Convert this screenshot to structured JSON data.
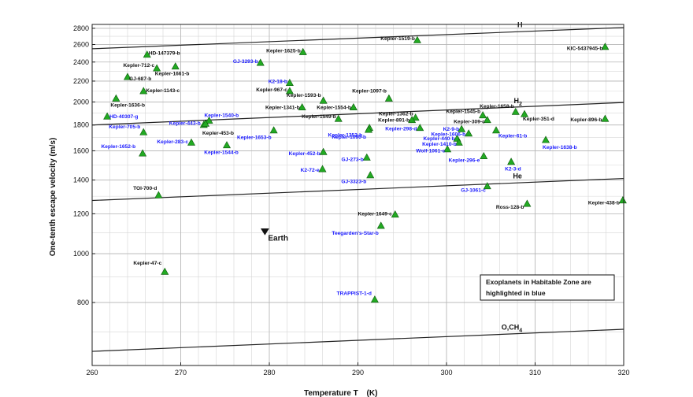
{
  "chart_data": {
    "type": "scatter",
    "xlabel": "Temperature T",
    "xlabel_unit": "(K)",
    "ylabel": "One-tenth escape velocity (m/s)",
    "xlim": [
      260,
      320
    ],
    "ylim": [
      600,
      2850
    ],
    "y_scale": "log",
    "x_ticks": [
      260,
      270,
      280,
      290,
      300,
      310,
      320
    ],
    "y_ticks": [
      800,
      1000,
      1200,
      1400,
      1600,
      1800,
      2000,
      2200,
      2400,
      2600,
      2800
    ],
    "grid": true,
    "marker": "triangle",
    "marker_color": "#22aa22",
    "colors": {
      "normal_label": "#111111",
      "habitable_label": "#1a1aff"
    },
    "note": [
      "Exoplanets in Habitable Zone are",
      "highlighted in blue"
    ],
    "reference_lines": [
      {
        "name": "H",
        "x": [
          260,
          320
        ],
        "y": [
          2550,
          2810
        ]
      },
      {
        "name": "H2",
        "x": [
          260,
          320
        ],
        "y": [
          1800,
          1995
        ]
      },
      {
        "name": "He",
        "x": [
          260,
          320
        ],
        "y": [
          1275,
          1410
        ]
      },
      {
        "name": "O,CH4",
        "x": [
          260,
          320
        ],
        "y": [
          640,
          708
        ]
      }
    ],
    "earth": {
      "name": "Earth",
      "x": 279.5,
      "y": 1105
    },
    "planets": [
      {
        "name": "Kepler-1519-b",
        "x": 296.7,
        "y": 2650,
        "hz": false
      },
      {
        "name": "KIC-5437945-b",
        "x": 317.9,
        "y": 2570,
        "hz": false
      },
      {
        "name": "HD-147379-b",
        "x": 266.2,
        "y": 2480,
        "hz": false
      },
      {
        "name": "Kepler-1625-b",
        "x": 283.8,
        "y": 2510,
        "hz": false
      },
      {
        "name": "GJ-3293-b",
        "x": 279.0,
        "y": 2390,
        "hz": true
      },
      {
        "name": "Kepler-712-c",
        "x": 267.3,
        "y": 2330,
        "hz": false
      },
      {
        "name": "Kepler-1661-b",
        "x": 269.4,
        "y": 2350,
        "hz": false
      },
      {
        "name": "GJ-687-b",
        "x": 264.0,
        "y": 2240,
        "hz": false
      },
      {
        "name": "K2-18-b",
        "x": 282.3,
        "y": 2180,
        "hz": true
      },
      {
        "name": "Kepler-1143-c",
        "x": 265.8,
        "y": 2100,
        "hz": false
      },
      {
        "name": "Kepler-967-c",
        "x": 282.3,
        "y": 2100,
        "hz": false
      },
      {
        "name": "Kepler-1593-b",
        "x": 286.1,
        "y": 2010,
        "hz": false
      },
      {
        "name": "Kepler-1097-b",
        "x": 293.5,
        "y": 2030,
        "hz": false
      },
      {
        "name": "Kepler-1636-b",
        "x": 262.7,
        "y": 2030,
        "hz": false
      },
      {
        "name": "Kepler-1341-b",
        "x": 283.7,
        "y": 1950,
        "hz": false
      },
      {
        "name": "Kepler-1554-b",
        "x": 289.5,
        "y": 1950,
        "hz": false
      },
      {
        "name": "Kepler-1658-b",
        "x": 307.8,
        "y": 1910,
        "hz": false
      },
      {
        "name": "HD-40307-g",
        "x": 261.7,
        "y": 1870,
        "hz": true
      },
      {
        "name": "Kepler-1540-b",
        "x": 273.2,
        "y": 1835,
        "hz": true
      },
      {
        "name": "Kepler-1549-b",
        "x": 287.8,
        "y": 1850,
        "hz": false
      },
      {
        "name": "Kepler-1362-b",
        "x": 296.5,
        "y": 1860,
        "hz": false
      },
      {
        "name": "Kepler-1545-b",
        "x": 304.1,
        "y": 1880,
        "hz": false
      },
      {
        "name": "Kepler-351-d",
        "x": 308.8,
        "y": 1890,
        "hz": false
      },
      {
        "name": "Kepler-896-b",
        "x": 317.9,
        "y": 1850,
        "hz": false
      },
      {
        "name": "Kepler-443-b",
        "x": 272.6,
        "y": 1800,
        "hz": true
      },
      {
        "name": "Kepler-891-b",
        "x": 296.1,
        "y": 1840,
        "hz": false
      },
      {
        "name": "Kepler-309-c",
        "x": 304.6,
        "y": 1840,
        "hz": false
      },
      {
        "name": "Kepler-705-b",
        "x": 265.8,
        "y": 1740,
        "hz": true
      },
      {
        "name": "Kepler-453-b",
        "x": 272.8,
        "y": 1810,
        "hz": false
      },
      {
        "name": "Kepler-1352-b",
        "x": 291.3,
        "y": 1775,
        "hz": true
      },
      {
        "name": "Kepler-298-d",
        "x": 297.0,
        "y": 1775,
        "hz": true
      },
      {
        "name": "K2-9-b",
        "x": 301.7,
        "y": 1765,
        "hz": true
      },
      {
        "name": "Kepler-1653-b",
        "x": 280.5,
        "y": 1755,
        "hz": true
      },
      {
        "name": "Kepler-1090-b",
        "x": 291.2,
        "y": 1760,
        "hz": true
      },
      {
        "name": "Kepler-1606-b",
        "x": 302.5,
        "y": 1730,
        "hz": true
      },
      {
        "name": "Kepler-61-b",
        "x": 305.6,
        "y": 1755,
        "hz": true
      },
      {
        "name": "Kepler-283-c",
        "x": 271.2,
        "y": 1660,
        "hz": true
      },
      {
        "name": "Kepler-440-b",
        "x": 301.2,
        "y": 1690,
        "hz": true
      },
      {
        "name": "Kepler-1410-b",
        "x": 301.4,
        "y": 1660,
        "hz": true
      },
      {
        "name": "Kepler-1638-b",
        "x": 311.2,
        "y": 1680,
        "hz": true
      },
      {
        "name": "Kepler-1544-b",
        "x": 275.2,
        "y": 1640,
        "hz": true
      },
      {
        "name": "Wolf-1061-c",
        "x": 300.1,
        "y": 1610,
        "hz": true
      },
      {
        "name": "Kepler-1652-b",
        "x": 265.7,
        "y": 1580,
        "hz": true
      },
      {
        "name": "Kepler-452-b",
        "x": 286.1,
        "y": 1590,
        "hz": true
      },
      {
        "name": "Kepler-296-e",
        "x": 304.2,
        "y": 1560,
        "hz": true
      },
      {
        "name": "GJ-273-b",
        "x": 291.0,
        "y": 1550,
        "hz": true
      },
      {
        "name": "K2-3-d",
        "x": 307.3,
        "y": 1520,
        "hz": true
      },
      {
        "name": "K2-72-e",
        "x": 286.0,
        "y": 1470,
        "hz": true
      },
      {
        "name": "GJ-3323-b",
        "x": 291.4,
        "y": 1430,
        "hz": true
      },
      {
        "name": "GJ-1061-c",
        "x": 304.6,
        "y": 1360,
        "hz": true
      },
      {
        "name": "TOI-700-d",
        "x": 267.5,
        "y": 1305,
        "hz": false
      },
      {
        "name": "Ross-128-b",
        "x": 309.1,
        "y": 1255,
        "hz": false
      },
      {
        "name": "Kepler-438-b",
        "x": 319.9,
        "y": 1275,
        "hz": false
      },
      {
        "name": "Kepler-1649-c",
        "x": 294.2,
        "y": 1195,
        "hz": false
      },
      {
        "name": "Teegarden's-Star-b",
        "x": 292.6,
        "y": 1135,
        "hz": true
      },
      {
        "name": "Kepler-47-c",
        "x": 268.2,
        "y": 920,
        "hz": false
      },
      {
        "name": "TRAPPIST-1-d",
        "x": 291.9,
        "y": 810,
        "hz": true
      }
    ]
  }
}
